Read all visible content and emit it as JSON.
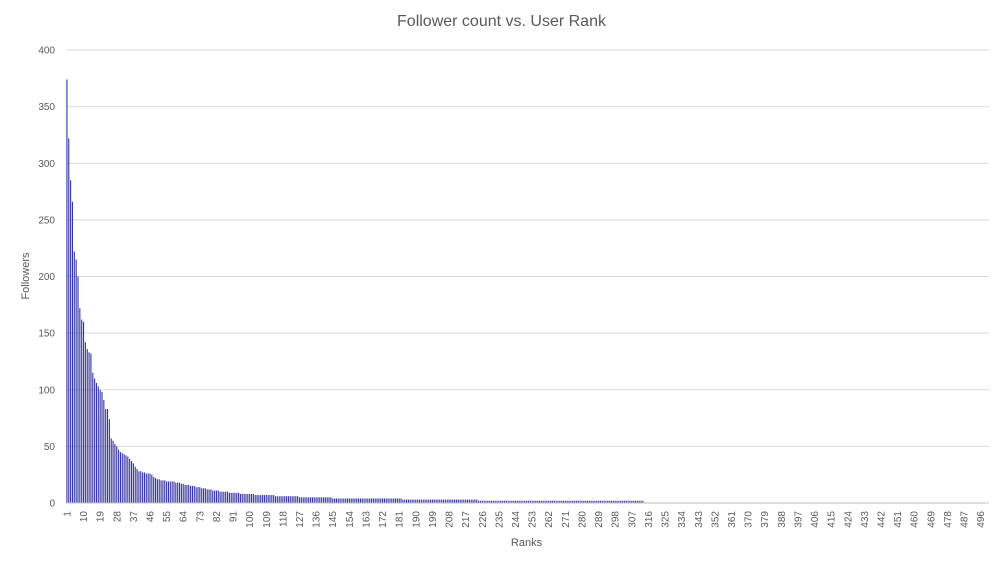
{
  "chart_data": {
    "type": "bar",
    "title": "Follower count vs. User Rank",
    "xlabel": "Ranks",
    "ylabel": "Followers",
    "ylim": [
      0,
      400
    ],
    "yticks": [
      0,
      50,
      100,
      150,
      200,
      250,
      300,
      350,
      400
    ],
    "x_range": [
      1,
      500
    ],
    "x_tick_labels": [
      1,
      10,
      19,
      28,
      37,
      46,
      55,
      64,
      73,
      82,
      91,
      100,
      109,
      118,
      127,
      136,
      145,
      154,
      163,
      172,
      181,
      190,
      199,
      208,
      217,
      226,
      235,
      244,
      253,
      262,
      271,
      280,
      289,
      298,
      307,
      316,
      325,
      334,
      343,
      352,
      361,
      370,
      379,
      388,
      397,
      406,
      415,
      424,
      433,
      442,
      451,
      460,
      469,
      478,
      487,
      496
    ],
    "bar_color": "#3333a3",
    "grid": true,
    "values_by_rank": [
      374,
      322,
      285,
      266,
      222,
      215,
      200,
      172,
      162,
      160,
      142,
      136,
      133,
      132,
      115,
      110,
      106,
      103,
      100,
      98,
      91,
      83,
      83,
      74,
      57,
      55,
      52,
      50,
      47,
      45,
      44,
      43,
      42,
      41,
      39,
      37,
      35,
      32,
      30,
      28,
      28,
      27,
      27,
      26,
      26,
      26,
      25,
      23,
      22,
      21,
      21,
      20,
      20,
      20,
      19,
      19,
      19,
      19,
      19,
      18,
      18,
      18,
      17,
      17,
      16,
      16,
      16,
      15,
      15,
      15,
      14,
      14,
      14,
      13,
      13,
      13,
      12,
      12,
      12,
      11,
      11,
      11,
      11,
      10,
      10,
      10,
      10,
      10,
      9,
      9,
      9,
      9,
      9,
      9,
      8,
      8,
      8,
      8,
      8,
      8,
      8,
      8,
      7,
      7,
      7,
      7,
      7,
      7,
      7,
      7,
      7,
      7,
      7,
      6,
      6,
      6,
      6,
      6,
      6,
      6,
      6,
      6,
      6,
      6,
      6,
      6,
      5,
      5,
      5,
      5,
      5,
      5,
      5,
      5,
      5,
      5,
      5,
      5,
      5,
      5,
      5,
      5,
      5,
      5,
      4,
      4,
      4,
      4,
      4,
      4,
      4,
      4,
      4,
      4,
      4,
      4,
      4,
      4,
      4,
      4,
      4,
      4,
      4,
      4,
      4,
      4,
      4,
      4,
      4,
      4,
      4,
      4,
      4,
      4,
      4,
      4,
      4,
      4,
      4,
      4,
      4,
      4,
      3,
      3,
      3,
      3,
      3,
      3,
      3,
      3,
      3,
      3,
      3,
      3,
      3,
      3,
      3,
      3,
      3,
      3,
      3,
      3,
      3,
      3,
      3,
      3,
      3,
      3,
      3,
      3,
      3,
      3,
      3,
      3,
      3,
      3,
      3,
      3,
      3,
      3,
      3,
      3,
      3,
      2,
      2,
      2,
      2,
      2,
      2,
      2,
      2,
      2,
      2,
      2,
      2,
      2,
      2,
      2,
      2,
      2,
      2,
      2,
      2,
      2,
      2,
      2,
      2,
      2,
      2,
      2,
      2,
      2,
      2,
      2,
      2,
      2,
      2,
      2,
      2,
      2,
      2,
      2,
      2,
      2,
      2,
      2,
      2,
      2,
      2,
      2,
      2,
      2,
      2,
      2,
      2,
      2,
      2,
      2,
      2,
      2,
      2,
      2,
      2,
      2,
      2,
      2,
      2,
      2,
      2,
      2,
      2,
      2,
      2,
      2,
      2,
      2,
      2,
      2,
      2,
      2,
      2,
      2,
      2,
      2,
      2,
      2,
      2,
      2,
      2,
      2,
      2,
      2,
      2
    ]
  }
}
